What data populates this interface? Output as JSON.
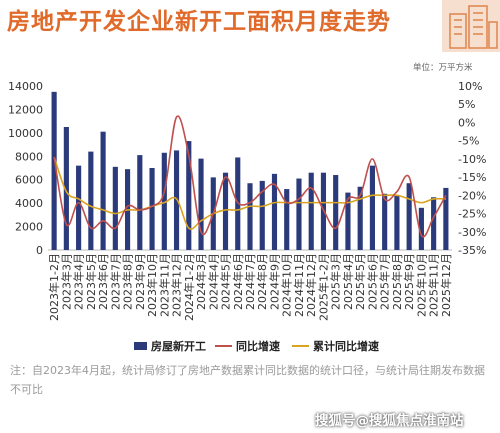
{
  "title": "房地产开发企业新开工面积月度走势",
  "unit_label": "单位：万平方米",
  "note": "注：自2023年4月起，统计局修订了房地产数据累计同比数据的统计口径，与统计局往期发布数据不可比",
  "watermark": "搜狐号@搜狐焦点淮南站",
  "colors": {
    "title": "#e06a2a",
    "bar": "#2a3a7a",
    "yoy": "#c0504d",
    "cum": "#d9a520"
  },
  "chart_data": {
    "type": "bar",
    "categories": [
      "2023年1-2月",
      "2023年3月",
      "2023年4月",
      "2023年5月",
      "2023年6月",
      "2023年7月",
      "2023年8月",
      "2023年9月",
      "2023年10月",
      "2023年11月",
      "2023年12月",
      "2024年1-2月",
      "2024年3月",
      "2024年4月",
      "2024年5月",
      "2024年6月",
      "2024年7月",
      "2024年8月",
      "2024年9月",
      "2024年10月",
      "2024年11月",
      "2024年12月",
      "2025年1-2月",
      "2025年3月",
      "2025年4月",
      "2025年5月",
      "2025年6月",
      "2025年7月",
      "2025年8月",
      "2025年9月",
      "2025年10月",
      "2025年11月",
      "2025年12月"
    ],
    "series": [
      {
        "name": "房屋新开工",
        "type": "bar",
        "axis": "left",
        "values": [
          13500,
          10500,
          7200,
          8400,
          10100,
          7100,
          6900,
          8100,
          7000,
          8300,
          8500,
          9300,
          7800,
          6200,
          6600,
          7900,
          5700,
          5900,
          6500,
          5200,
          6100,
          6600,
          6600,
          6400,
          4900,
          5400,
          7200,
          4800,
          4700,
          5700,
          3600,
          4500,
          5300
        ]
      },
      {
        "name": "同比增速",
        "type": "line",
        "axis": "right",
        "values": [
          -9.5,
          -28,
          -22,
          -29,
          -27,
          -29,
          -23,
          -24,
          -23,
          -19,
          1.5,
          -9,
          -30,
          -25,
          -15,
          -22,
          -22,
          -19,
          -17,
          -22,
          -21,
          -18,
          -24,
          -29,
          -21,
          -20,
          -10,
          -21,
          -19,
          -15,
          -31,
          -26,
          -20
        ]
      },
      {
        "name": "累计同比增速",
        "type": "line",
        "axis": "right",
        "values": [
          -9.5,
          -19,
          -21,
          -23,
          -24,
          -25,
          -24,
          -24,
          -23,
          -22,
          -21,
          -29,
          -27,
          -25,
          -24,
          -24,
          -23,
          -23,
          -22,
          -22,
          -22,
          -22,
          -22,
          -22,
          -22,
          -21,
          -20,
          -20,
          -20,
          -21,
          -22,
          -21,
          -21
        ]
      }
    ],
    "ylim_left": [
      0,
      14000
    ],
    "yticks_left": [
      "0",
      "2000",
      "4000",
      "6000",
      "8000",
      "10000",
      "12000",
      "14000"
    ],
    "ylim_right": [
      -35,
      10
    ],
    "yticks_right": [
      "-35%",
      "-30%",
      "-25%",
      "-20%",
      "-15%",
      "-10%",
      "-5%",
      "0%",
      "5%",
      "10%"
    ],
    "legend_position": "bottom",
    "grid": false
  }
}
